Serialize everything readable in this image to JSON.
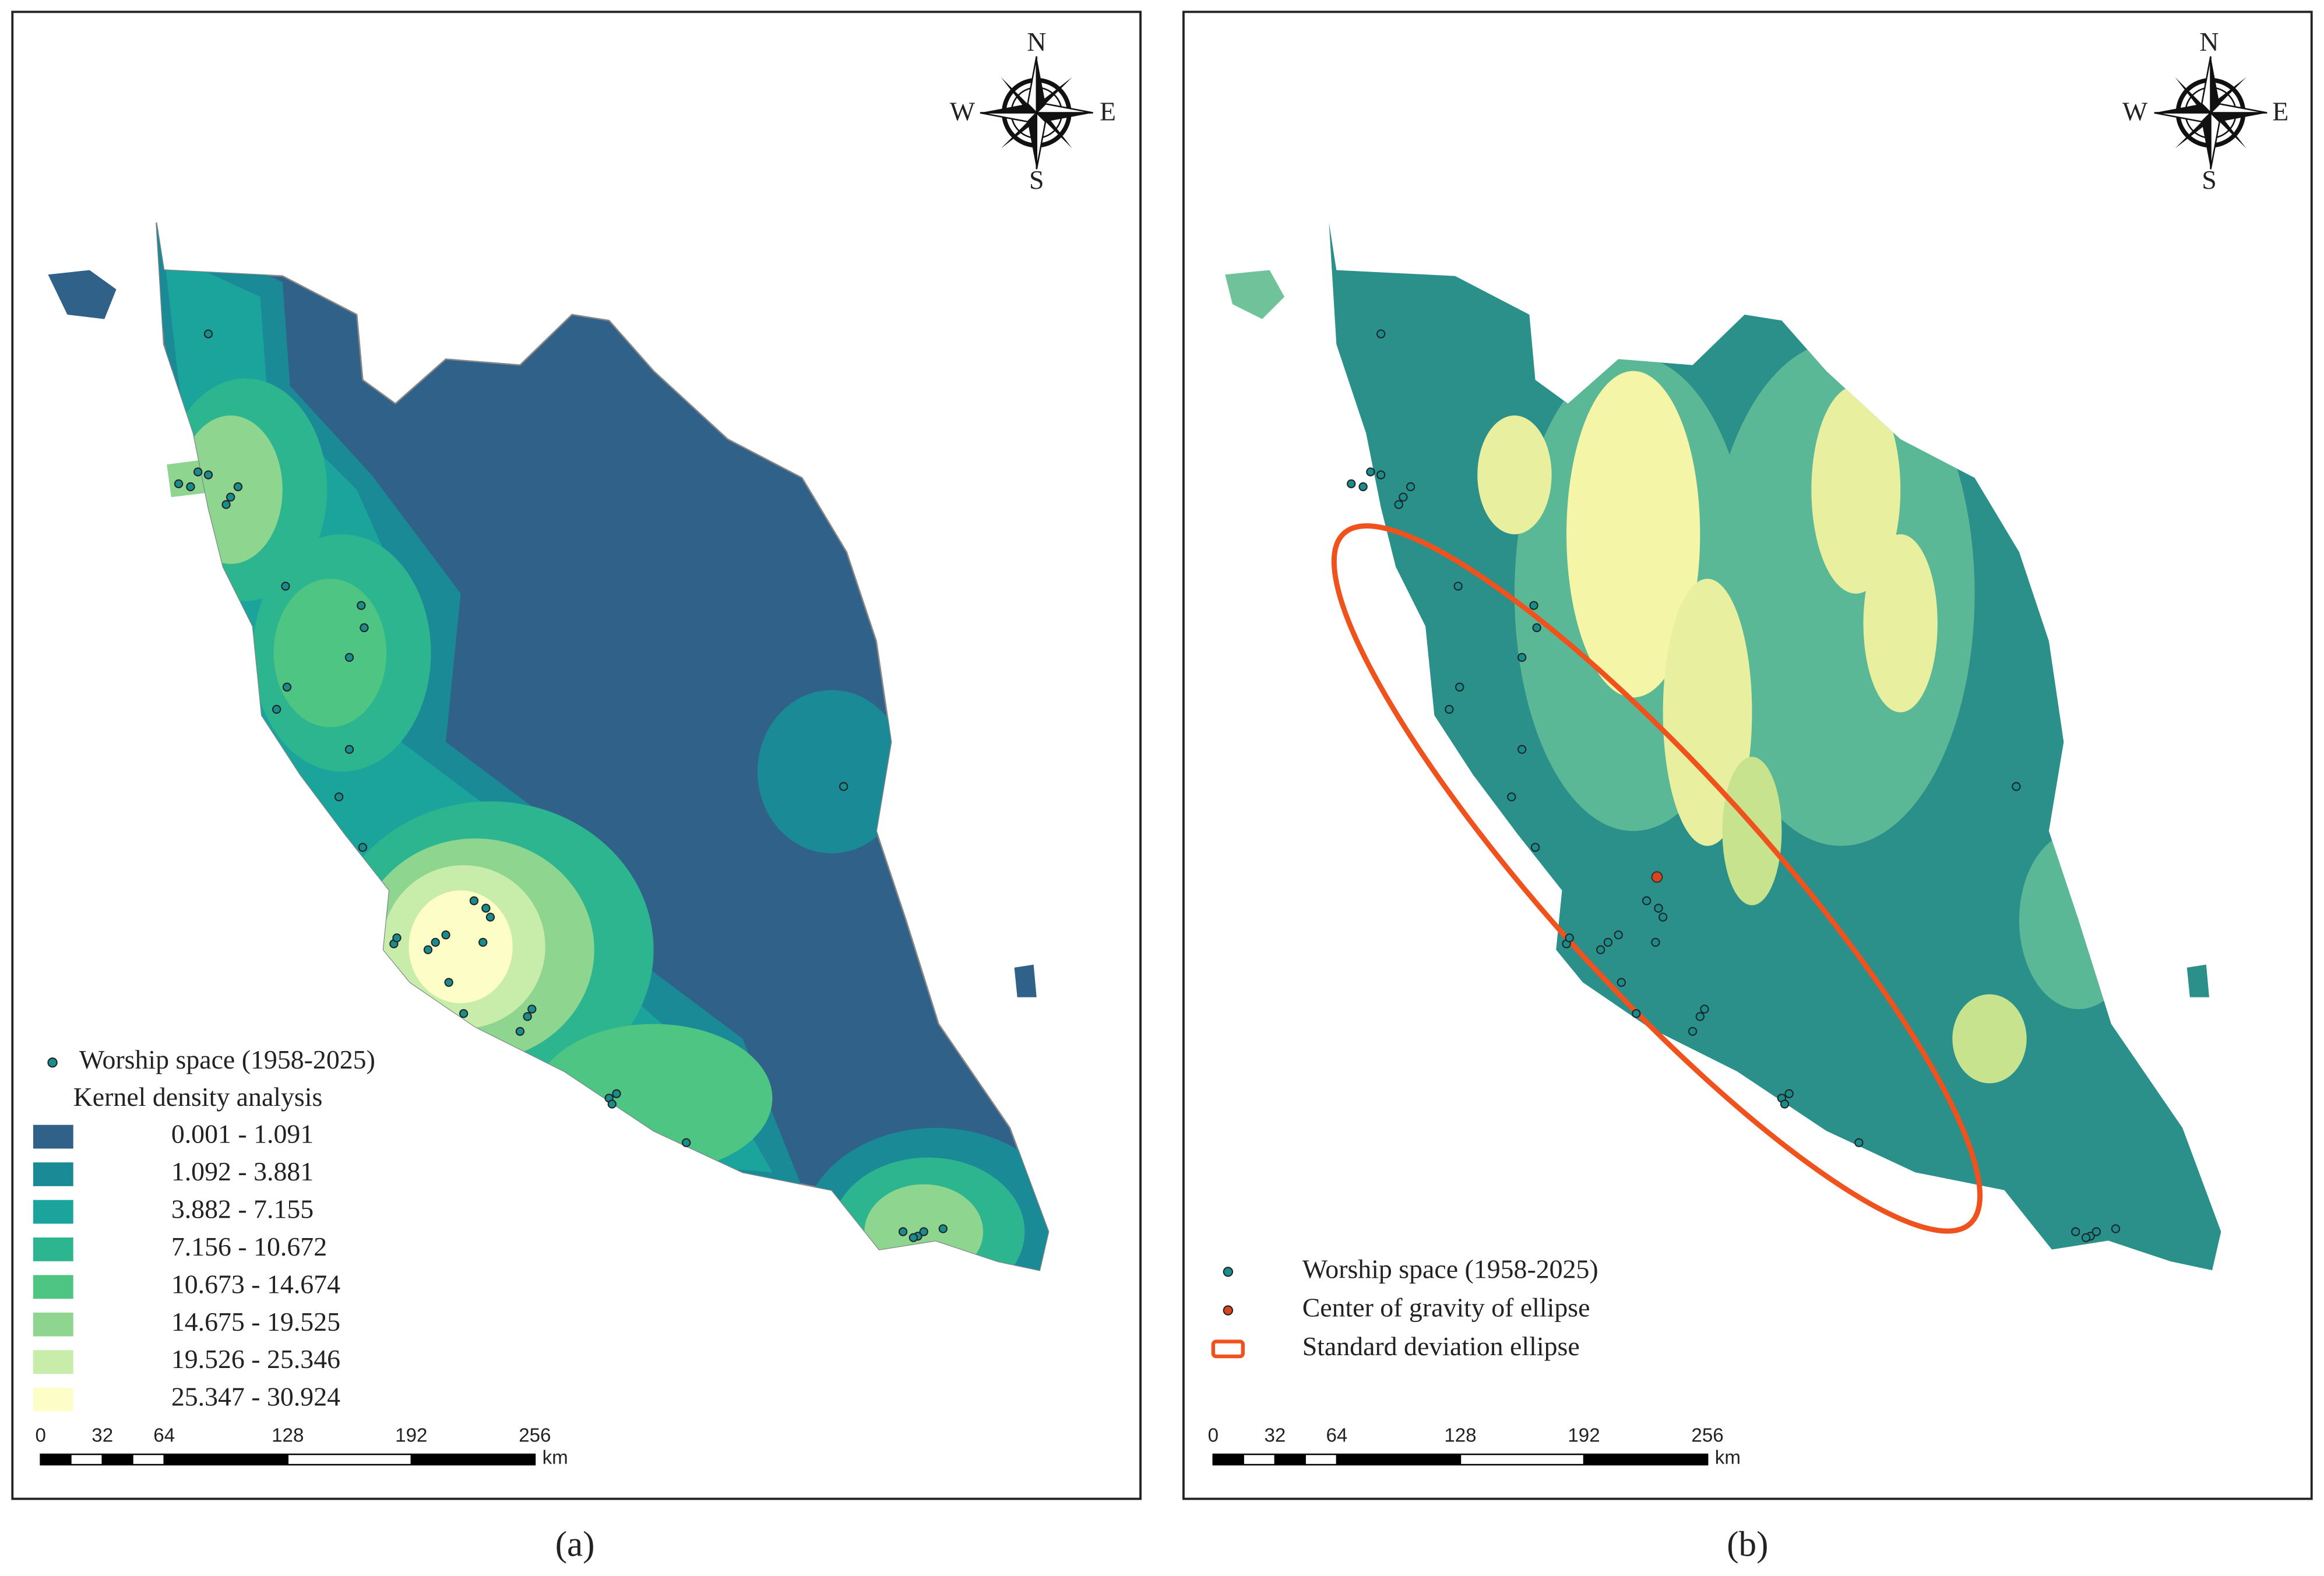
{
  "panels": [
    {
      "caption": "(a)",
      "compass": {
        "n": "N",
        "s": "S",
        "e": "E",
        "w": "W"
      },
      "legend": {
        "items": [
          {
            "label": "Worship space (1958-2025)",
            "color": "#1a8c8c",
            "symbol": "point"
          }
        ],
        "title": "Kernel density analysis",
        "classes": [
          {
            "label": "0.001 - 1.091",
            "color": "#2f6189"
          },
          {
            "label": "1.092 - 3.881",
            "color": "#1a8a96"
          },
          {
            "label": "3.882 - 7.155",
            "color": "#1aa49c"
          },
          {
            "label": "7.156 - 10.672",
            "color": "#2cb58e"
          },
          {
            "label": "10.673 - 14.674",
            "color": "#4fc583"
          },
          {
            "label": "14.675 - 19.525",
            "color": "#8ed58f"
          },
          {
            "label": "19.526 - 25.346",
            "color": "#c8ecaa"
          },
          {
            "label": "25.347 - 30.924",
            "color": "#fdfdc8"
          }
        ]
      },
      "scale": {
        "ticks": [
          0,
          32,
          64,
          128,
          192,
          256
        ],
        "unit": "km"
      }
    },
    {
      "caption": "(b)",
      "compass": {
        "n": "N",
        "s": "S",
        "e": "E",
        "w": "W"
      },
      "legend": {
        "items": [
          {
            "label": "Worship space (1958-2025)",
            "color": "#1a8c8c",
            "symbol": "point"
          },
          {
            "label": "Center of gravity of ellipse",
            "color": "#d9431e",
            "symbol": "point"
          },
          {
            "label": "Standard deviation ellipse",
            "color": "#f0521e",
            "symbol": "ellipse"
          }
        ]
      },
      "scale": {
        "ticks": [
          0,
          32,
          64,
          128,
          192,
          256
        ],
        "unit": "km"
      }
    }
  ]
}
